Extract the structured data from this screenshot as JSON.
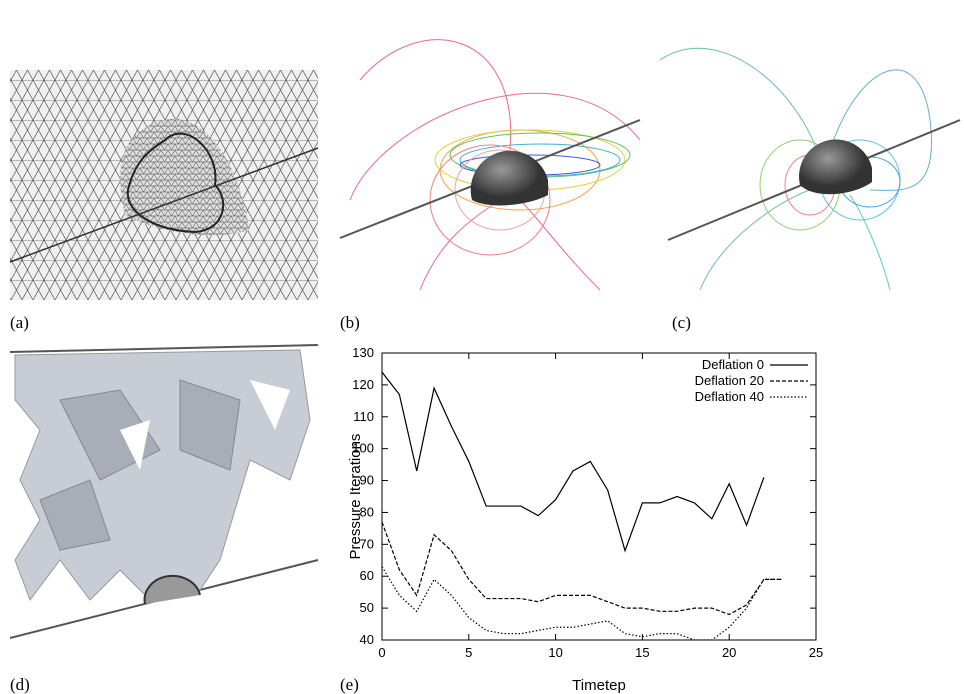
{
  "panels": {
    "labels": [
      "(a)",
      "(b)",
      "(c)",
      "(d)",
      "(e)"
    ]
  },
  "chart_data": {
    "type": "line",
    "x_label": "Timetep",
    "y_label": "Pressure Iterations",
    "x": [
      0,
      1,
      2,
      3,
      4,
      5,
      6,
      7,
      8,
      9,
      10,
      11,
      12,
      13,
      14,
      15,
      16,
      17,
      18,
      19,
      20,
      21,
      22,
      23
    ],
    "series": [
      {
        "name": "Deflation  0",
        "color": "#000000",
        "dash": "solid",
        "values": [
          124,
          117,
          93,
          119,
          107,
          96,
          82,
          82,
          82,
          79,
          84,
          93,
          96,
          87,
          68,
          83,
          83,
          85,
          83,
          78,
          89,
          76,
          91,
          null
        ]
      },
      {
        "name": "Deflation 20",
        "color": "#000000",
        "dash": "dashed",
        "values": [
          77,
          62,
          54,
          73,
          68,
          59,
          53,
          53,
          53,
          52,
          54,
          54,
          54,
          52,
          50,
          50,
          49,
          49,
          50,
          50,
          48,
          51,
          59,
          59
        ]
      },
      {
        "name": "Deflation 40",
        "color": "#000000",
        "dash": "dotted",
        "values": [
          63,
          54,
          49,
          59,
          54,
          47,
          43,
          42,
          42,
          43,
          44,
          44,
          45,
          46,
          42,
          41,
          42,
          42,
          40,
          40,
          44,
          50,
          59,
          59
        ]
      }
    ],
    "xlim": [
      0,
      25
    ],
    "xticks": [
      0,
      5,
      10,
      15,
      20,
      25
    ],
    "ylim": [
      40,
      130
    ],
    "yticks": [
      40,
      50,
      60,
      70,
      80,
      90,
      100,
      110,
      120,
      130
    ],
    "legend": "top-right"
  }
}
